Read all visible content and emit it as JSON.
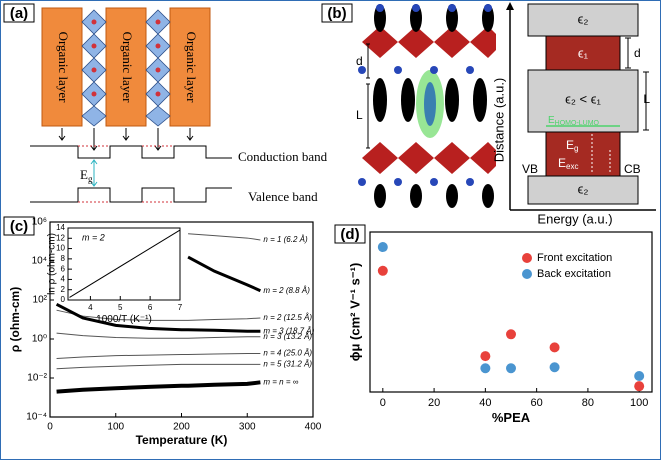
{
  "panel_a": {
    "label": "(a)",
    "organic_layers": [
      "Organic layer",
      "Organic layer",
      "Organic layer"
    ],
    "conduction_band": "Conduction band",
    "valence_band": "Valence band",
    "gap": {
      "symbol": "E",
      "subscript": "g"
    }
  },
  "panel_b": {
    "label": "(b)",
    "structure_d": "d",
    "structure_L": "L",
    "eps_top": "ϵ₂",
    "eps_well": "ϵ₁",
    "eps_barrier": "ϵ₂ < ϵ₁",
    "eps_bottom": "ϵ₂",
    "well_d": "d",
    "barrier_L": "L",
    "homo_lumo": {
      "symbol": "E",
      "subscript": "HOMO-LUMO"
    },
    "gap": {
      "symbol": "E",
      "subscript": "g"
    },
    "exciton": {
      "symbol": "E",
      "subscript": "exc"
    },
    "vb": "VB",
    "cb": "CB",
    "y_label": "Distance (a.u.)",
    "x_label": "Energy (a.u.)"
  },
  "chart_data": [
    {
      "type": "line",
      "label": "(c)",
      "x_label": "Temperature (K)",
      "y_label": "ρ (ohm-cm)",
      "log_y": true,
      "xlim": [
        0,
        400
      ],
      "xticks": [
        0,
        100,
        200,
        300,
        400
      ],
      "ylim": [
        0.0001,
        1000000
      ],
      "yticks": [
        {
          "value": 0.0001,
          "label": "10⁻⁴"
        },
        {
          "value": 0.01,
          "label": "10⁻²"
        },
        {
          "value": 1,
          "label": "10⁰"
        },
        {
          "value": 100,
          "label": "10²"
        },
        {
          "value": 10000,
          "label": "10⁴"
        },
        {
          "value": 1000000,
          "label": "10⁶"
        }
      ],
      "x": [
        10,
        50,
        100,
        150,
        200,
        210,
        250,
        300,
        320
      ],
      "series": [
        {
          "name": "n = 1 (6.2 Å)",
          "color": "#555555",
          "width": 1,
          "values": [
            null,
            null,
            null,
            null,
            null,
            250000,
            200000,
            150000,
            120000
          ]
        },
        {
          "name": "m = 2 (8.8 Å)",
          "color": "#000000",
          "width": 3,
          "values": [
            null,
            null,
            null,
            null,
            null,
            16000,
            3000,
            600,
            300
          ]
        },
        {
          "name": "n = 2 (12.5 Å)",
          "color": "#555555",
          "width": 1,
          "values": [
            30,
            15,
            10,
            9,
            9,
            9,
            10,
            11,
            12
          ]
        },
        {
          "name": "m = 3 (18.7 Å)",
          "color": "#000000",
          "width": 3,
          "values": [
            60,
            12,
            5,
            3.5,
            3,
            3,
            2.8,
            2.5,
            2.5
          ]
        },
        {
          "name": "n = 3 (13.2 Å)",
          "color": "#555555",
          "width": 1,
          "values": [
            2,
            1.5,
            1.2,
            1.1,
            1.1,
            1.1,
            1.2,
            1.3,
            1.3
          ]
        },
        {
          "name": "n = 4 (25.0 Å)",
          "color": "#555555",
          "width": 1,
          "values": [
            0.1,
            0.12,
            0.14,
            0.15,
            0.16,
            0.16,
            0.17,
            0.18,
            0.18
          ]
        },
        {
          "name": "n = 5 (31.2 Å)",
          "color": "#555555",
          "width": 1,
          "values": [
            0.03,
            0.035,
            0.04,
            0.045,
            0.05,
            0.05,
            0.05,
            0.05,
            0.05
          ]
        },
        {
          "name": "m = n = ∞",
          "color": "#000000",
          "width": 4,
          "values": [
            0.002,
            0.0025,
            0.003,
            0.0035,
            0.004,
            0.004,
            0.0045,
            0.005,
            0.006
          ]
        }
      ]
    },
    {
      "type": "line",
      "annotation": "m = 2",
      "x_label": "1000/T (K⁻¹)",
      "y_label": "ln ρ (ohm-cm)",
      "xlim": [
        3.25,
        7
      ],
      "xticks": [
        4,
        5,
        6,
        7
      ],
      "ylim": [
        0,
        14
      ],
      "yticks": [
        0,
        2,
        4,
        6,
        8,
        10,
        12,
        14
      ],
      "x": [
        3.3,
        7
      ],
      "series": [
        {
          "color": "#000000",
          "width": 1,
          "values": [
            0.5,
            13.6
          ]
        }
      ]
    },
    {
      "type": "scatter",
      "label": "(d)",
      "x_label": "%PEA",
      "y_label": "ϕμ (cm² V⁻¹ s⁻¹)",
      "xlim": [
        -5,
        105
      ],
      "xticks": [
        0,
        20,
        40,
        60,
        80,
        100
      ],
      "ylim": [
        0,
        33
      ],
      "legend": "upper right",
      "x": [
        0,
        40,
        50,
        67,
        100
      ],
      "series": [
        {
          "name": "Front excitation",
          "color": "#e8413b",
          "values": [
            25,
            7.4,
            11.9,
            9.2,
            1.2
          ]
        },
        {
          "name": "Back excitation",
          "color": "#4a95d0",
          "values": [
            29.9,
            4.9,
            4.9,
            5.1,
            3.3
          ]
        }
      ]
    }
  ]
}
